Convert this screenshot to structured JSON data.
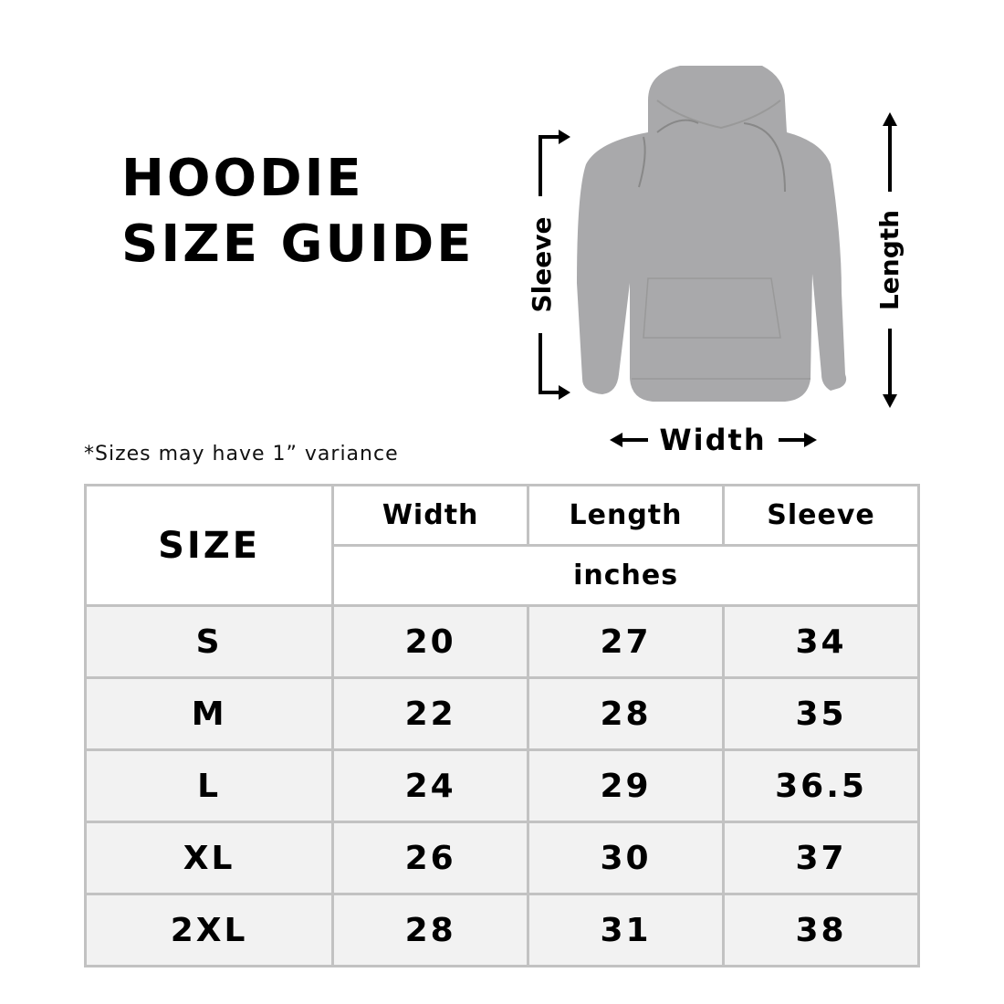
{
  "title": {
    "line1": "HOODIE",
    "line2": "SIZE GUIDE"
  },
  "note": "*Sizes may have 1” variance",
  "diagram": {
    "sleeve": "Sleeve",
    "length": "Length",
    "width": "Width",
    "garment_color": "#a9a9ab"
  },
  "table": {
    "size_header": "SIZE",
    "columns": [
      "Width",
      "Length",
      "Sleeve"
    ],
    "unit": "inches",
    "rows": [
      {
        "size": "S",
        "width": "20",
        "length": "27",
        "sleeve": "34"
      },
      {
        "size": "M",
        "width": "22",
        "length": "28",
        "sleeve": "35"
      },
      {
        "size": "L",
        "width": "24",
        "length": "29",
        "sleeve": "36.5"
      },
      {
        "size": "XL",
        "width": "26",
        "length": "30",
        "sleeve": "37"
      },
      {
        "size": "2XL",
        "width": "28",
        "length": "31",
        "sleeve": "38"
      }
    ]
  }
}
